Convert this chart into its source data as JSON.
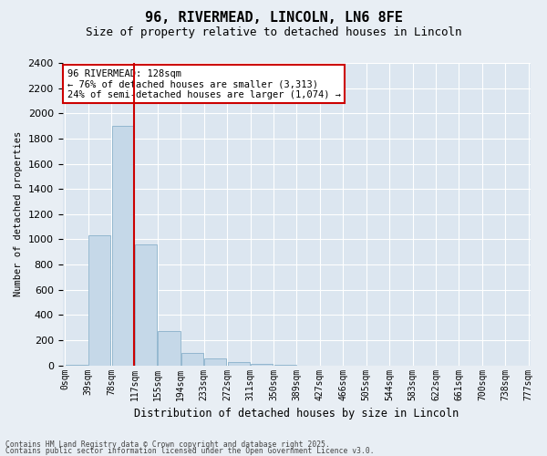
{
  "title_line1": "96, RIVERMEAD, LINCOLN, LN6 8FE",
  "title_line2": "Size of property relative to detached houses in Lincoln",
  "xlabel": "Distribution of detached houses by size in Lincoln",
  "ylabel": "Number of detached properties",
  "bins": [
    "0sqm",
    "39sqm",
    "78sqm",
    "117sqm",
    "155sqm",
    "194sqm",
    "233sqm",
    "272sqm",
    "311sqm",
    "350sqm",
    "389sqm",
    "427sqm",
    "466sqm",
    "505sqm",
    "544sqm",
    "583sqm",
    "622sqm",
    "661sqm",
    "700sqm",
    "738sqm",
    "777sqm"
  ],
  "bar_values": [
    5,
    1030,
    1900,
    960,
    270,
    100,
    55,
    25,
    10,
    2,
    0,
    0,
    0,
    0,
    0,
    0,
    0,
    0,
    0,
    0
  ],
  "bar_color": "#c5d8e8",
  "bar_edge_color": "#7ba7c4",
  "vline_color": "#cc0000",
  "ylim": [
    0,
    2400
  ],
  "yticks": [
    0,
    200,
    400,
    600,
    800,
    1000,
    1200,
    1400,
    1600,
    1800,
    2000,
    2200,
    2400
  ],
  "annotation_title": "96 RIVERMEAD: 128sqm",
  "annotation_line2": "← 76% of detached houses are smaller (3,313)",
  "annotation_line3": "24% of semi-detached houses are larger (1,074) →",
  "annotation_box_color": "#cc0000",
  "footer_line1": "Contains HM Land Registry data © Crown copyright and database right 2025.",
  "footer_line2": "Contains public sector information licensed under the Open Government Licence v3.0.",
  "bg_color": "#e8eef4",
  "plot_bg_color": "#dce6f0"
}
